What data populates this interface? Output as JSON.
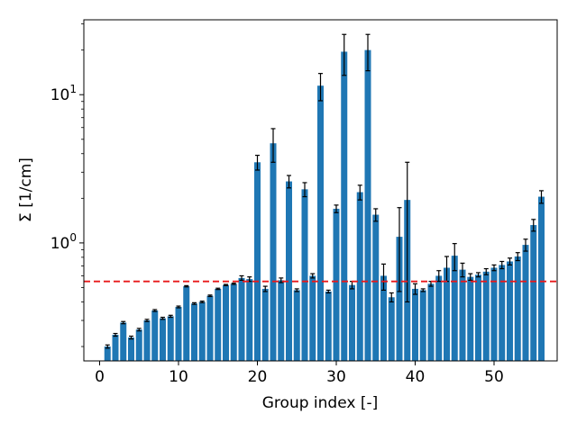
{
  "chart_data": {
    "type": "bar",
    "title": "",
    "xlabel": "Group index [-]",
    "ylabel": "Σ [1/cm]",
    "y_scale": "log",
    "xlim": [
      -2,
      58
    ],
    "ylim": [
      0.16,
      32
    ],
    "x_ticks": [
      0,
      10,
      20,
      30,
      40,
      50
    ],
    "y_ticks": [
      {
        "value": 1,
        "base": "10",
        "exp": "0"
      },
      {
        "value": 10,
        "base": "10",
        "exp": "1"
      }
    ],
    "grid": false,
    "legend": "none",
    "bar_color": "#1f77b4",
    "errorbar_color": "#000000",
    "reference_line": {
      "value": 0.55,
      "color": "#e8191b",
      "style": "dashed"
    },
    "x": [
      1,
      2,
      3,
      4,
      5,
      6,
      7,
      8,
      9,
      10,
      11,
      12,
      13,
      14,
      15,
      16,
      17,
      18,
      19,
      20,
      21,
      22,
      23,
      24,
      25,
      26,
      27,
      28,
      29,
      30,
      31,
      32,
      33,
      34,
      35,
      36,
      37,
      38,
      39,
      40,
      41,
      42,
      43,
      44,
      45,
      46,
      47,
      48,
      49,
      50,
      51,
      52,
      53,
      54,
      55,
      56
    ],
    "values": [
      0.2,
      0.24,
      0.29,
      0.23,
      0.26,
      0.3,
      0.35,
      0.31,
      0.32,
      0.37,
      0.51,
      0.39,
      0.4,
      0.44,
      0.49,
      0.52,
      0.53,
      0.58,
      0.57,
      3.5,
      0.49,
      4.7,
      0.56,
      2.6,
      0.48,
      2.3,
      0.6,
      11.5,
      0.47,
      1.7,
      19.5,
      0.52,
      2.2,
      20.0,
      1.55,
      0.6,
      0.43,
      1.1,
      1.95,
      0.49,
      0.48,
      0.53,
      0.6,
      0.68,
      0.82,
      0.66,
      0.59,
      0.61,
      0.64,
      0.68,
      0.71,
      0.75,
      0.81,
      0.97,
      1.32,
      2.05
    ],
    "errors": [
      0.005,
      0.005,
      0.005,
      0.005,
      0.005,
      0.005,
      0.005,
      0.005,
      0.005,
      0.005,
      0.005,
      0.005,
      0.005,
      0.005,
      0.005,
      0.005,
      0.005,
      0.02,
      0.02,
      0.4,
      0.02,
      1.2,
      0.02,
      0.25,
      0.01,
      0.25,
      0.02,
      2.4,
      0.01,
      0.1,
      6.0,
      0.03,
      0.25,
      5.5,
      0.15,
      0.12,
      0.03,
      0.63,
      1.55,
      0.04,
      0.01,
      0.02,
      0.05,
      0.13,
      0.17,
      0.07,
      0.03,
      0.02,
      0.03,
      0.03,
      0.04,
      0.04,
      0.05,
      0.09,
      0.12,
      0.2
    ]
  }
}
